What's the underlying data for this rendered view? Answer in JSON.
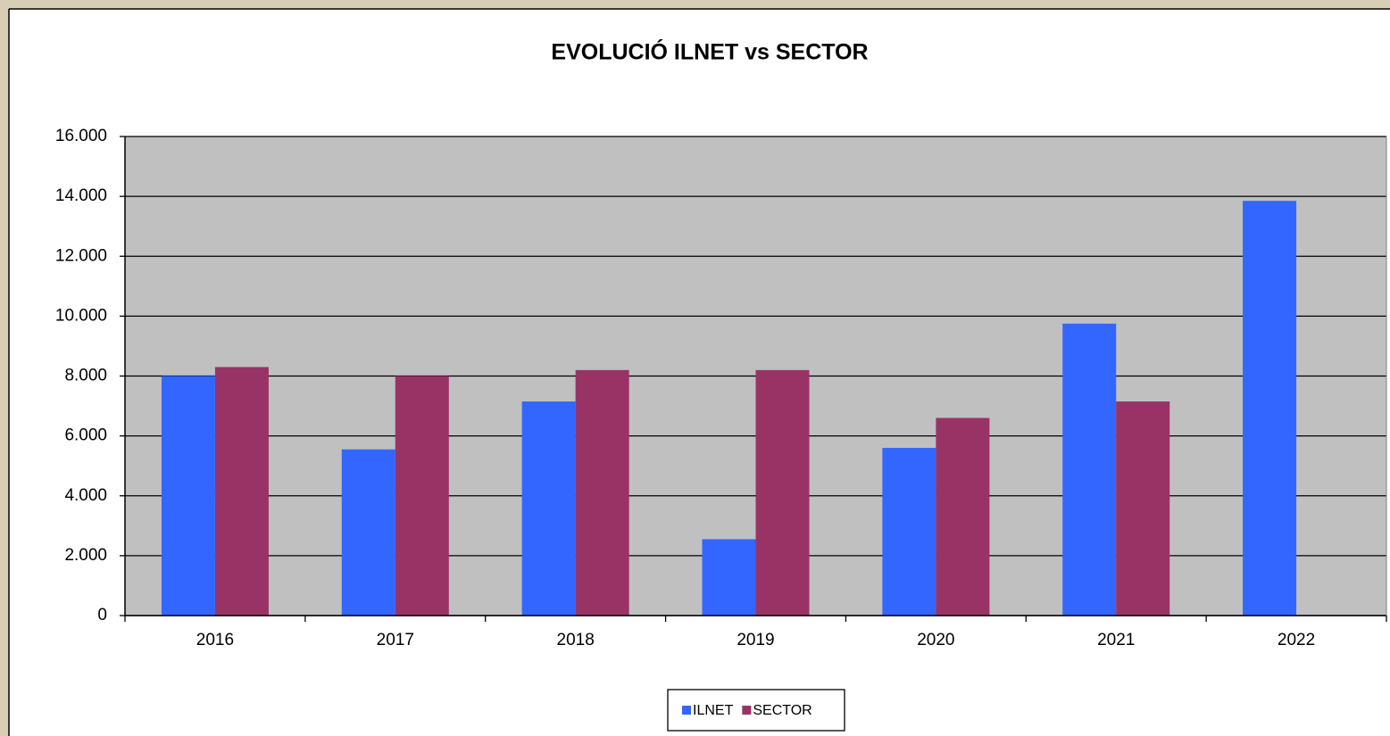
{
  "chart_data": {
    "type": "bar",
    "title": "EVOLUCIÓ ILNET vs SECTOR",
    "categories": [
      "2016",
      "2017",
      "2018",
      "2019",
      "2020",
      "2021",
      "2022"
    ],
    "series": [
      {
        "name": "ILNET",
        "color": "#3366ff",
        "values": [
          8000,
          5550,
          7150,
          2550,
          5600,
          9750,
          13850
        ]
      },
      {
        "name": "SECTOR",
        "color": "#993366",
        "values": [
          8300,
          8000,
          8200,
          8200,
          6600,
          7150,
          null
        ]
      }
    ],
    "ylim": [
      0,
      16000
    ],
    "yticks": [
      0,
      {
        "value": 2000,
        "label": "2.000"
      },
      {
        "value": 4000,
        "label": "4.000"
      },
      {
        "value": 6000,
        "label": "6.000"
      },
      {
        "value": 8000,
        "label": "8.000"
      },
      {
        "value": 10000,
        "label": "10.000"
      },
      {
        "value": 12000,
        "label": "12.000"
      },
      {
        "value": 14000,
        "label": "14.000"
      },
      {
        "value": 16000,
        "label": "16.000"
      }
    ],
    "grid": true,
    "legend": "bottom"
  }
}
